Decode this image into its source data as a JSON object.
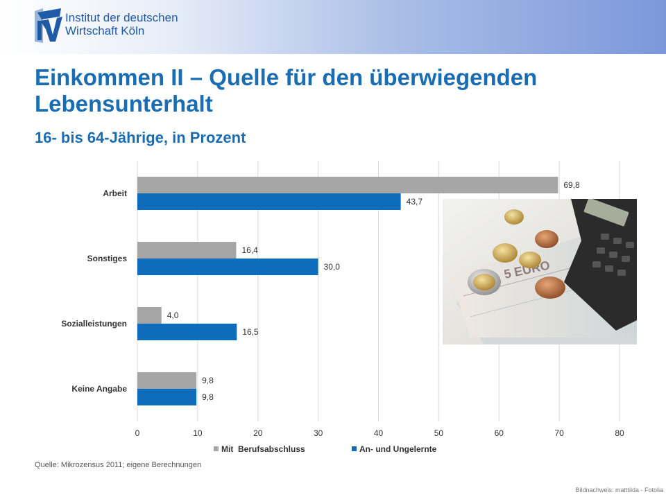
{
  "header": {
    "logo_line1": "Institut der deutschen",
    "logo_line2": "Wirtschaft Köln",
    "logo_mark": "IW"
  },
  "title": "Einkommen II – Quelle für den überwiegenden Lebensunterhalt",
  "subtitle": "16- bis 64-Jährige, in Prozent",
  "source": "Quelle: Mikrozensus 2011; eigene Berechnungen",
  "image_credit": "Bildnachweis: matttilda - Fotolia",
  "photo": {
    "description_icon": "money-calculator-photo"
  },
  "colors": {
    "accent": "#1a6cb3",
    "series1": "#a6a6a6",
    "series2": "#0f6cbd",
    "gridline": "#d9d9d9"
  },
  "chart_data": {
    "type": "bar",
    "orientation": "horizontal",
    "categories": [
      "Arbeit",
      "Sonstiges",
      "Sozialleistungen",
      "Keine Angabe"
    ],
    "series": [
      {
        "name": "Mit  Berufsabschluss",
        "values": [
          69.8,
          16.4,
          4.0,
          9.8
        ],
        "labels": [
          "69,8",
          "16,4",
          "4,0",
          "9,8"
        ]
      },
      {
        "name": "An- und Ungelernte",
        "values": [
          43.7,
          30.0,
          16.5,
          9.8
        ],
        "labels": [
          "43,7",
          "30,0",
          "16,5",
          "9,8"
        ]
      }
    ],
    "xlim": [
      0,
      80
    ],
    "xticks": [
      0,
      10,
      20,
      30,
      40,
      50,
      60,
      70,
      80
    ],
    "grid": true,
    "legend": "bottom"
  }
}
